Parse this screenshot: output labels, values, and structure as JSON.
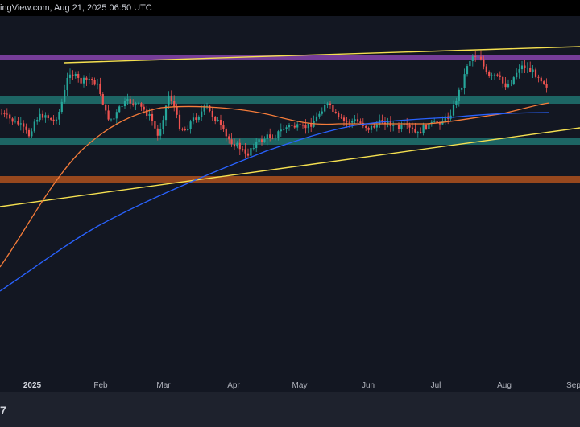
{
  "header": {
    "text": "ingView.com, Aug 21, 2025 06:50 UTC"
  },
  "footer": {
    "logo_text": "7"
  },
  "chart_data": {
    "type": "candlestick",
    "x_ticks": [
      {
        "label": "2025",
        "bold": true
      },
      {
        "label": "Feb"
      },
      {
        "label": "Mar"
      },
      {
        "label": "Apr"
      },
      {
        "label": "May"
      },
      {
        "label": "Jun"
      },
      {
        "label": "Jul"
      },
      {
        "label": "Aug"
      },
      {
        "label": "Sep"
      }
    ],
    "zones": [
      {
        "name": "purple-resistance-zone",
        "color": "#7b3fa0",
        "opacity": 0.95,
        "y_top": 49,
        "y_bottom": 55
      },
      {
        "name": "teal-zone-upper",
        "color": "#26a69a",
        "opacity": 0.55,
        "y_top": 99,
        "y_bottom": 109
      },
      {
        "name": "teal-zone-lower",
        "color": "#26a69a",
        "opacity": 0.55,
        "y_top": 151,
        "y_bottom": 160
      },
      {
        "name": "orange-support-zone",
        "color": "#c45a1d",
        "opacity": 0.75,
        "y_top": 199,
        "y_bottom": 208
      }
    ],
    "colors": {
      "up": "#26a69a",
      "down": "#ef5350",
      "ma_fast": "#f57c3a",
      "ma_slow": "#2962ff",
      "trendline": "#f5e050"
    }
  }
}
